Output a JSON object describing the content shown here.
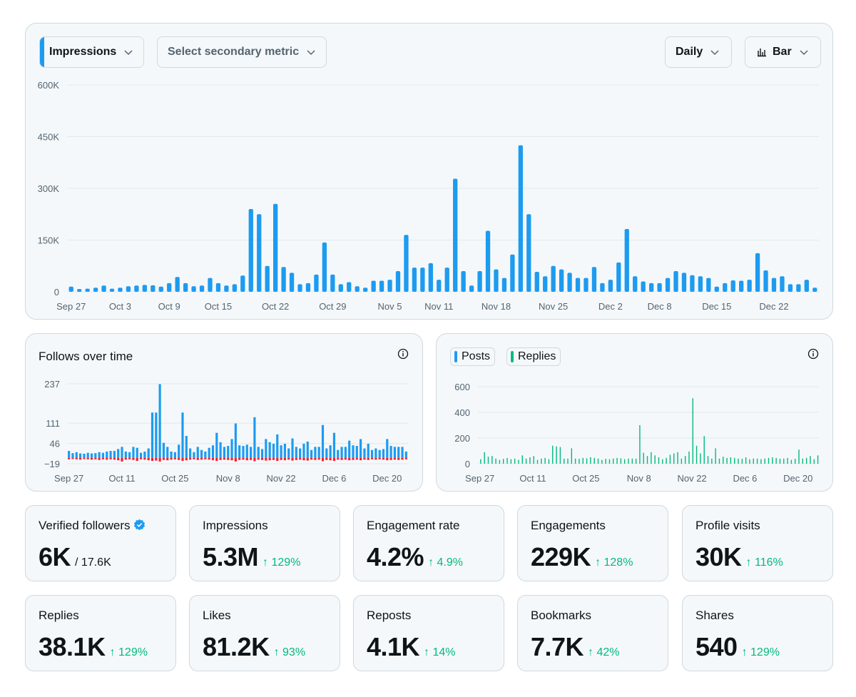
{
  "main_chart": {
    "primary_metric": "Impressions",
    "secondary_metric_placeholder": "Select secondary metric",
    "interval": "Daily",
    "chart_type_label": "Bar",
    "icons": {
      "dropdown": "chevron-down-icon",
      "chart_type": "bar-chart-icon"
    },
    "colors": {
      "bar": "#1d9bf0"
    }
  },
  "follows_card": {
    "title": "Follows over time",
    "icons": {
      "info": "info-icon"
    },
    "colors": {
      "follows": "#1d9bf0",
      "unfollows": "#f4212e"
    }
  },
  "posts_card": {
    "legend": [
      {
        "label": "Posts",
        "color": "#1d9bf0"
      },
      {
        "label": "Replies",
        "color": "#00ba7c"
      }
    ],
    "icons": {
      "info": "info-icon"
    }
  },
  "stats": [
    {
      "label": "Verified followers",
      "value": "6K",
      "sub": "/ 17.6K",
      "verified": true
    },
    {
      "label": "Impressions",
      "value": "5.3M",
      "change": "↑ 129%"
    },
    {
      "label": "Engagement rate",
      "value": "4.2%",
      "change": "↑ 4.9%"
    },
    {
      "label": "Engagements",
      "value": "229K",
      "change": "↑ 128%"
    },
    {
      "label": "Profile visits",
      "value": "30K",
      "change": "↑ 116%"
    },
    {
      "label": "Replies",
      "value": "38.1K",
      "change": "↑ 129%"
    },
    {
      "label": "Likes",
      "value": "81.2K",
      "change": "↑ 93%"
    },
    {
      "label": "Reposts",
      "value": "4.1K",
      "change": "↑ 14%"
    },
    {
      "label": "Bookmarks",
      "value": "7.7K",
      "change": "↑ 42%"
    },
    {
      "label": "Shares",
      "value": "540",
      "change": "↑ 129%"
    }
  ],
  "chart_data": [
    {
      "type": "bar",
      "grid": true,
      "ylim": [
        0,
        600000
      ],
      "y_ticks": [
        {
          "value": 0,
          "label": "0"
        },
        {
          "value": 150000,
          "label": "150K"
        },
        {
          "value": 300000,
          "label": "300K"
        },
        {
          "value": 450000,
          "label": "450K"
        },
        {
          "value": 600000,
          "label": "600K"
        }
      ],
      "x_tick_labels": [
        {
          "index": 0,
          "label": "Sep 27"
        },
        {
          "index": 6,
          "label": "Oct 3"
        },
        {
          "index": 12,
          "label": "Oct 9"
        },
        {
          "index": 18,
          "label": "Oct 15"
        },
        {
          "index": 25,
          "label": "Oct 22"
        },
        {
          "index": 32,
          "label": "Oct 29"
        },
        {
          "index": 39,
          "label": "Nov 5"
        },
        {
          "index": 45,
          "label": "Nov 11"
        },
        {
          "index": 52,
          "label": "Nov 18"
        },
        {
          "index": 59,
          "label": "Nov 25"
        },
        {
          "index": 66,
          "label": "Dec 2"
        },
        {
          "index": 72,
          "label": "Dec 8"
        },
        {
          "index": 79,
          "label": "Dec 15"
        },
        {
          "index": 86,
          "label": "Dec 22"
        }
      ],
      "values": [
        15000,
        8000,
        9000,
        12000,
        18000,
        9000,
        12000,
        16000,
        18000,
        20000,
        19000,
        15000,
        25000,
        43000,
        25000,
        16000,
        18000,
        40000,
        25000,
        18000,
        22000,
        47000,
        240000,
        225000,
        75000,
        255000,
        72000,
        55000,
        22000,
        25000,
        50000,
        143000,
        50000,
        22000,
        28000,
        16000,
        12000,
        32000,
        32000,
        35000,
        60000,
        165000,
        70000,
        70000,
        83000,
        35000,
        70000,
        328000,
        60000,
        18000,
        60000,
        177000,
        65000,
        40000,
        108000,
        425000,
        225000,
        58000,
        45000,
        75000,
        65000,
        55000,
        40000,
        40000,
        72000,
        25000,
        35000,
        85000,
        182000,
        45000,
        30000,
        25000,
        25000,
        40000,
        60000,
        55000,
        48000,
        45000,
        40000,
        15000,
        25000,
        33000,
        32000,
        35000,
        112000,
        62000,
        40000,
        45000,
        22000,
        22000,
        35000,
        12000
      ]
    },
    {
      "type": "bar",
      "grid": true,
      "ylim": [
        -19,
        237
      ],
      "y_ticks": [
        -19,
        46,
        111,
        237
      ],
      "x_tick_labels": [
        {
          "index": 0,
          "label": "Sep 27"
        },
        {
          "index": 14,
          "label": "Oct 11"
        },
        {
          "index": 28,
          "label": "Oct 25"
        },
        {
          "index": 42,
          "label": "Nov 8"
        },
        {
          "index": 56,
          "label": "Nov 22"
        },
        {
          "index": 70,
          "label": "Dec 6"
        },
        {
          "index": 84,
          "label": "Dec 20"
        }
      ],
      "series": [
        {
          "values": [
            22,
            15,
            18,
            14,
            13,
            16,
            14,
            15,
            18,
            16,
            20,
            22,
            22,
            28,
            35,
            20,
            18,
            35,
            32,
            16,
            20,
            30,
            145,
            145,
            236,
            48,
            35,
            20,
            18,
            42,
            145,
            70,
            30,
            18,
            35,
            25,
            20,
            32,
            40,
            80,
            50,
            35,
            38,
            60,
            110,
            40,
            38,
            42,
            35,
            130,
            35,
            28,
            60,
            50,
            45,
            75,
            40,
            45,
            30,
            62,
            35,
            30,
            45,
            52,
            25,
            35,
            35,
            105,
            30,
            40,
            80,
            25,
            35,
            35,
            55,
            40,
            38,
            60,
            30,
            45,
            25,
            30,
            25,
            28,
            60,
            38,
            35,
            35,
            35,
            20
          ]
        },
        {
          "values": [
            -5,
            -4,
            -5,
            -6,
            -4,
            -5,
            -6,
            -5,
            -7,
            -5,
            -6,
            -5,
            -6,
            -8,
            -12,
            -6,
            -5,
            -7,
            -10,
            -5,
            -6,
            -8,
            -10,
            -9,
            -12,
            -7,
            -8,
            -6,
            -5,
            -7,
            -10,
            -8,
            -6,
            -5,
            -7,
            -6,
            -5,
            -6,
            -8,
            -10,
            -7,
            -6,
            -7,
            -8,
            -12,
            -7,
            -6,
            -8,
            -7,
            -11,
            -6,
            -7,
            -9,
            -8,
            -7,
            -10,
            -7,
            -8,
            -6,
            -9,
            -7,
            -6,
            -8,
            -9,
            -6,
            -7,
            -6,
            -11,
            -7,
            -8,
            -10,
            -6,
            -7,
            -6,
            -8,
            -7,
            -6,
            -8,
            -6,
            -7,
            -5,
            -6,
            -5,
            -6,
            -8,
            -7,
            -6,
            -7,
            -6,
            -5
          ]
        }
      ]
    },
    {
      "type": "bar",
      "grid": true,
      "ylim": [
        0,
        600
      ],
      "y_ticks": [
        0,
        200,
        400,
        600
      ],
      "x_tick_labels": [
        {
          "index": 0,
          "label": "Sep 27"
        },
        {
          "index": 14,
          "label": "Oct 11"
        },
        {
          "index": 28,
          "label": "Oct 25"
        },
        {
          "index": 42,
          "label": "Nov 8"
        },
        {
          "index": 56,
          "label": "Nov 22"
        },
        {
          "index": 70,
          "label": "Dec 6"
        },
        {
          "index": 84,
          "label": "Dec 20"
        }
      ],
      "series": [
        {
          "name": "Posts",
          "values": [
            0,
            0,
            0,
            0,
            0,
            0,
            0,
            0,
            0,
            0,
            0,
            0,
            0,
            0,
            0,
            0,
            0,
            0,
            0,
            0,
            0,
            0,
            0,
            0,
            0,
            0,
            0,
            0,
            0,
            0,
            0,
            0,
            0,
            0,
            0,
            0,
            0,
            0,
            0,
            0,
            0,
            0,
            0,
            0,
            0,
            0,
            0,
            0,
            0,
            0,
            0,
            0,
            0,
            0,
            0,
            0,
            0,
            0,
            0,
            0,
            0,
            0,
            0,
            0,
            0,
            0,
            0,
            0,
            0,
            0,
            0,
            0,
            0,
            0,
            0,
            0,
            0,
            0,
            0,
            0,
            0,
            0,
            0,
            0,
            0,
            0,
            0,
            0,
            0,
            0
          ]
        },
        {
          "name": "Replies",
          "values": [
            35,
            90,
            55,
            60,
            40,
            30,
            38,
            45,
            35,
            40,
            30,
            65,
            40,
            50,
            60,
            30,
            40,
            45,
            35,
            140,
            135,
            130,
            40,
            40,
            120,
            40,
            38,
            45,
            42,
            50,
            45,
            40,
            30,
            38,
            35,
            40,
            45,
            42,
            35,
            40,
            40,
            40,
            300,
            85,
            60,
            90,
            65,
            50,
            35,
            45,
            70,
            80,
            90,
            40,
            60,
            95,
            510,
            140,
            80,
            215,
            60,
            40,
            120,
            40,
            55,
            45,
            50,
            45,
            40,
            38,
            50,
            35,
            40,
            40,
            35,
            40,
            45,
            50,
            45,
            38,
            40,
            45,
            30,
            38,
            110,
            40,
            45,
            60,
            35,
            65
          ]
        }
      ]
    }
  ]
}
